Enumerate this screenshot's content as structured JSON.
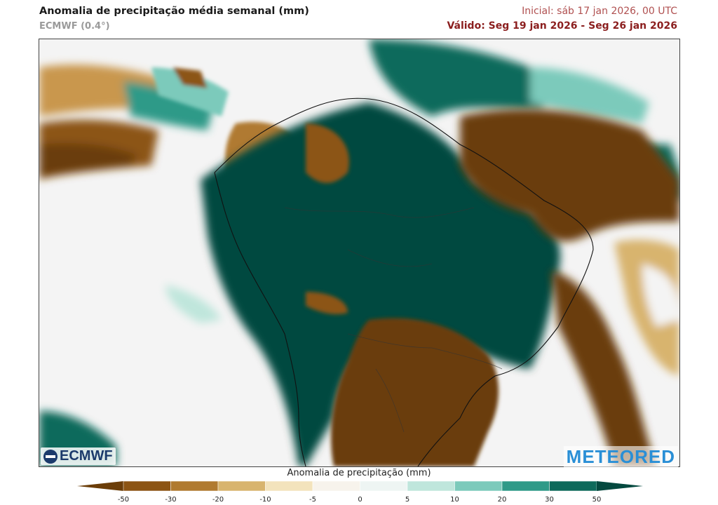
{
  "header": {
    "title": "Anomalia de precipitação média semanal (mm)",
    "model": "ECMWF (0.4°)",
    "initial": "Inicial:  sáb 17 jan 2026, 00 UTC",
    "valid": "Válido: Seg 19 jan 2026 - Seg 26 jan 2026"
  },
  "map": {
    "region": "South America",
    "ocean_color": "#f4f4f4"
  },
  "logos": {
    "left": "ECMWF",
    "right": "METEORED"
  },
  "legend": {
    "title": "Anomalia de precipitação (mm)",
    "ticks": [
      "-50",
      "-30",
      "-20",
      "-10",
      "-5",
      "0",
      "5",
      "10",
      "20",
      "30",
      "50"
    ],
    "colors": [
      "#6b3d08",
      "#8c5413",
      "#b07a30",
      "#d8b46e",
      "#f3e3bc",
      "#f7f3ec",
      "#eef5f3",
      "#bfe6dc",
      "#7ccabb",
      "#2f9a88",
      "#0e6a5b",
      "#04493f"
    ]
  }
}
